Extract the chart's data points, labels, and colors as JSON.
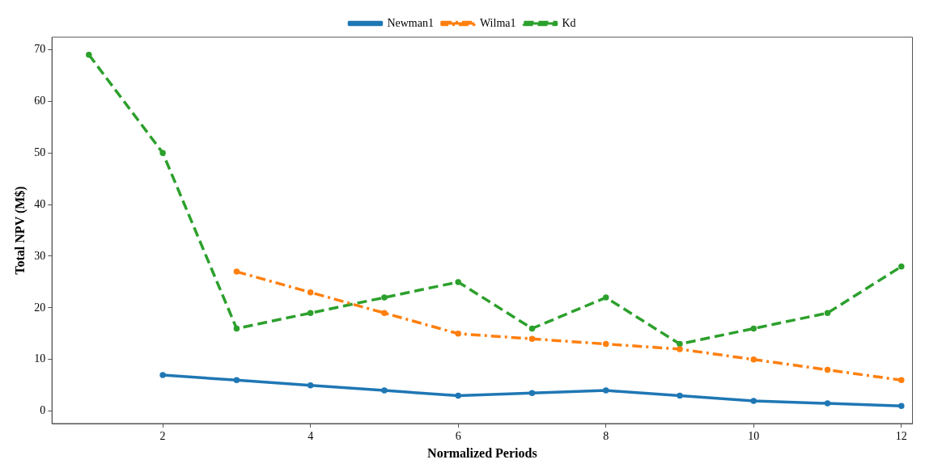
{
  "chart_data": {
    "type": "line",
    "xlabel": "Normalized Periods",
    "ylabel": "Total NPV (M$)",
    "xlim": [
      0.5,
      12.15
    ],
    "xticks": [
      2,
      4,
      6,
      8,
      10,
      12
    ],
    "ylim": [
      -2.4,
      72.4
    ],
    "yticks": [
      0,
      10,
      20,
      30,
      40,
      50,
      60,
      70
    ],
    "grid": false,
    "legend": "top",
    "marker": "circle",
    "series": [
      {
        "name": "Newman1",
        "color": "#1f77b4",
        "line_style": "solid",
        "x": [
          2,
          3,
          4,
          5,
          6,
          7,
          8,
          9,
          10,
          11,
          12
        ],
        "values": [
          7,
          6,
          5,
          4,
          3,
          3.5,
          4,
          3,
          2,
          1.5,
          1
        ]
      },
      {
        "name": "Wilma1",
        "color": "#ff7f0e",
        "line_style": "dashdot",
        "x": [
          3,
          4,
          5,
          6,
          7,
          8,
          9,
          10,
          11,
          12
        ],
        "values": [
          27,
          23,
          19,
          15,
          14,
          13,
          12,
          10,
          8,
          6
        ]
      },
      {
        "name": "Kd",
        "color": "#2ca02c",
        "line_style": "dashed",
        "x": [
          1,
          2,
          3,
          4,
          5,
          6,
          7,
          8,
          9,
          10,
          11,
          12
        ],
        "values": [
          69,
          50,
          16,
          19,
          22,
          25,
          16,
          22,
          13,
          16,
          19,
          28
        ]
      }
    ]
  }
}
